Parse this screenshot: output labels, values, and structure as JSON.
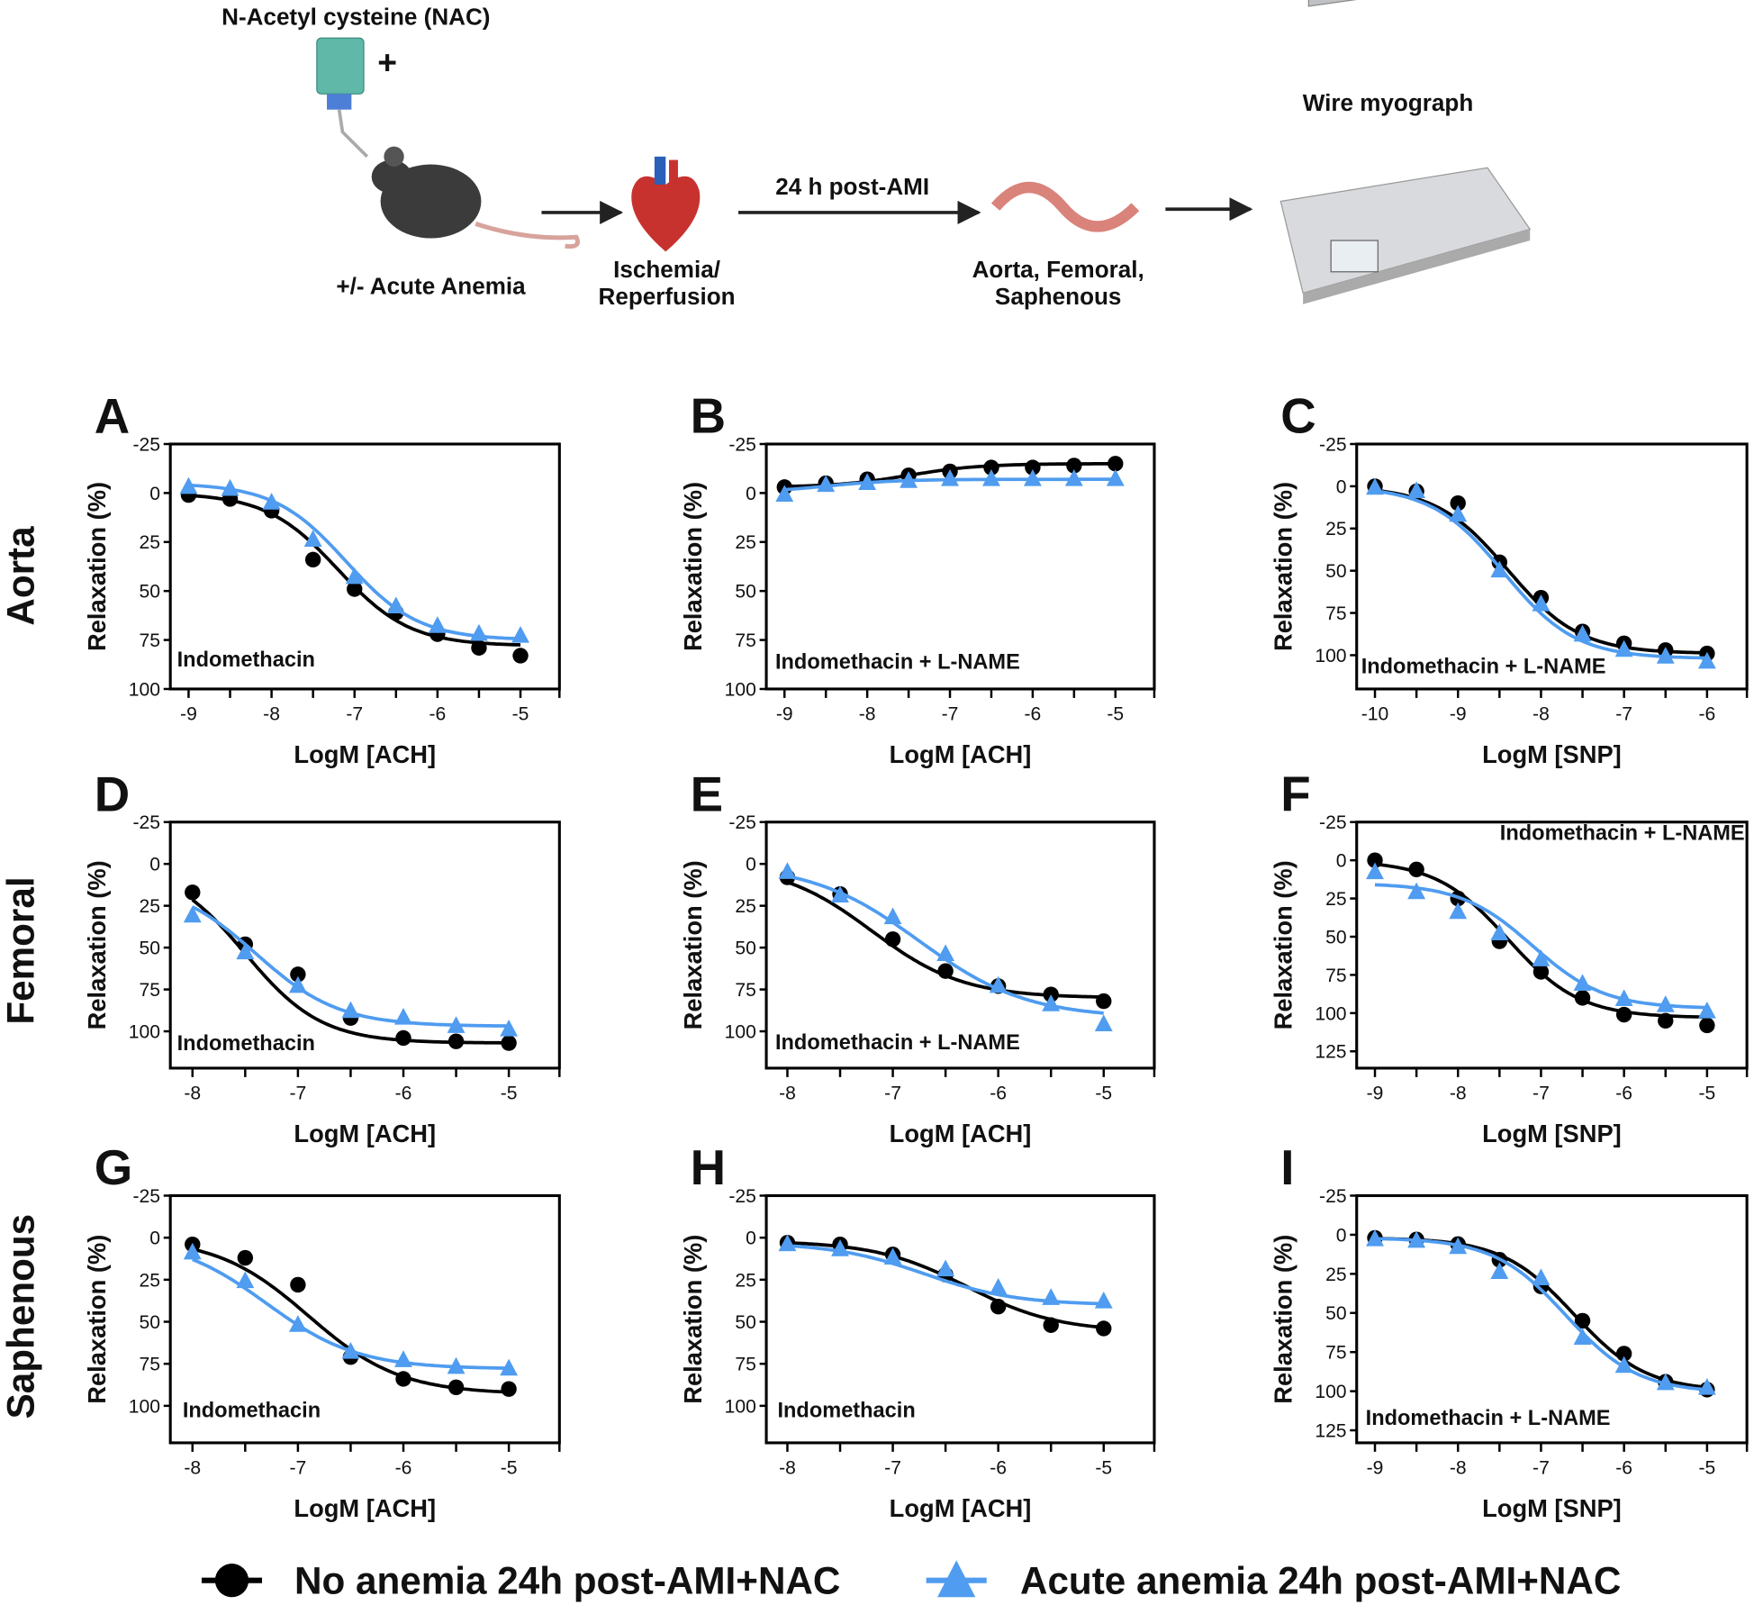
{
  "illustration": {
    "nac_label": "N-Acetyl cysteine (NAC)",
    "plus": "+",
    "anemia_label": "+/- Acute Anemia",
    "ir_label_1": "Ischemia/",
    "ir_label_2": "Reperfusion",
    "time_label": "24 h post-AMI",
    "vessels_label_1": "Aorta, Femoral,",
    "vessels_label_2": "Saphenous",
    "myograph_label": "Wire myograph"
  },
  "row_labels": [
    "Aorta",
    "Femoral",
    "Saphenous"
  ],
  "legend": {
    "series_1": "No anemia 24h post-AMI+NAC",
    "series_2": "Acute anemia 24h post-AMI+NAC"
  },
  "colors": {
    "series_1": "#000000",
    "series_2": "#4f9cf0"
  },
  "chart_data": [
    {
      "panel": "A",
      "type": "line",
      "ylabel": "Relaxation (%)",
      "xlabel": "LogM [ACH]",
      "annotation": "Indomethacin",
      "xlim": [
        -9.22,
        -4.53
      ],
      "ylim": [
        -25,
        100
      ],
      "yinvert": true,
      "yticks": [
        -25,
        0,
        25,
        50,
        75,
        100
      ],
      "xticks": [
        -9,
        -8,
        -7,
        -6,
        -5
      ],
      "x": [
        -9,
        -8.5,
        -8,
        -7.5,
        -7,
        -6.5,
        -6,
        -5.5,
        -5
      ],
      "series": [
        {
          "name": "No anemia 24h post-AMI+NAC",
          "values": [
            1,
            3,
            9,
            34,
            49,
            61,
            72,
            79,
            83
          ],
          "fit": {
            "top": 0,
            "bottom": 78,
            "logEC50": -7.2,
            "hill": 1
          }
        },
        {
          "name": "Acute anemia 24h post-AMI+NAC",
          "values": [
            -3,
            -2,
            5,
            24,
            43,
            58,
            68,
            72,
            73
          ],
          "fit": {
            "top": -5,
            "bottom": 75,
            "logEC50": -7.1,
            "hill": 1
          }
        }
      ]
    },
    {
      "panel": "B",
      "type": "line",
      "ylabel": "Relaxation (%)",
      "xlabel": "LogM [ACH]",
      "annotation": "Indomethacin + L-NAME",
      "xlim": [
        -9.22,
        -4.53
      ],
      "ylim": [
        -25,
        100
      ],
      "yinvert": true,
      "yticks": [
        -25,
        0,
        25,
        50,
        75,
        100
      ],
      "xticks": [
        -9,
        -8,
        -7,
        -6,
        -5
      ],
      "x": [
        -9,
        -8.5,
        -8,
        -7.5,
        -7,
        -6.5,
        -6,
        -5.5,
        -5
      ],
      "series": [
        {
          "name": "No anemia 24h post-AMI+NAC",
          "values": [
            -3,
            -5,
            -7,
            -9,
            -11,
            -13,
            -13,
            -14,
            -15
          ],
          "fit": {
            "top": -3,
            "bottom": -15,
            "logEC50": -7.5,
            "hill": 1
          }
        },
        {
          "name": "Acute anemia 24h post-AMI+NAC",
          "values": [
            1,
            -4,
            -5,
            -6,
            -7,
            -7,
            -7,
            -7,
            -7
          ],
          "fit": {
            "top": 0,
            "bottom": -7,
            "logEC50": -8.5,
            "hill": 1
          }
        }
      ]
    },
    {
      "panel": "C",
      "type": "line",
      "ylabel": "Relaxation (%)",
      "xlabel": "LogM [SNP]",
      "annotation": "Indomethacin + L-NAME",
      "xlim": [
        -10.22,
        -5.52
      ],
      "ylim": [
        -25,
        120
      ],
      "yinvert": true,
      "yticks": [
        -25,
        0,
        25,
        50,
        75,
        100
      ],
      "xticks": [
        -10,
        -9,
        -8,
        -7,
        -6
      ],
      "x": [
        -10,
        -9.5,
        -9,
        -8.5,
        -8,
        -7.5,
        -7,
        -6.5,
        -6
      ],
      "series": [
        {
          "name": "No anemia 24h post-AMI+NAC",
          "values": [
            0,
            3,
            10,
            45,
            66,
            86,
            93,
            97,
            99
          ],
          "fit": {
            "top": 0,
            "bottom": 99,
            "logEC50": -8.4,
            "hill": 1
          }
        },
        {
          "name": "Acute anemia 24h post-AMI+NAC",
          "values": [
            1,
            3,
            17,
            50,
            70,
            88,
            97,
            101,
            104
          ],
          "fit": {
            "top": 0,
            "bottom": 102,
            "logEC50": -8.45,
            "hill": 1
          }
        }
      ]
    },
    {
      "panel": "D",
      "type": "line",
      "ylabel": "Relaxation (%)",
      "xlabel": "LogM [ACH]",
      "annotation": "Indomethacin",
      "xlim": [
        -8.21,
        -4.52
      ],
      "ylim": [
        -25,
        122
      ],
      "yinvert": true,
      "yticks": [
        -25,
        0,
        25,
        50,
        75,
        100
      ],
      "xticks": [
        -8,
        -7,
        -6,
        -5
      ],
      "x": [
        -8,
        -7.5,
        -7,
        -6.5,
        -6,
        -5.5,
        -5
      ],
      "series": [
        {
          "name": "No anemia 24h post-AMI+NAC",
          "values": [
            17,
            48,
            66,
            92,
            104,
            106,
            107
          ],
          "fit": {
            "top": 0,
            "bottom": 107,
            "logEC50": -7.5,
            "hill": 1.2
          }
        },
        {
          "name": "Acute anemia 24h post-AMI+NAC",
          "values": [
            31,
            53,
            73,
            88,
            92,
            97,
            99
          ],
          "fit": {
            "top": 10,
            "bottom": 97,
            "logEC50": -7.4,
            "hill": 1.1
          }
        }
      ]
    },
    {
      "panel": "E",
      "type": "line",
      "ylabel": "Relaxation (%)",
      "xlabel": "LogM [ACH]",
      "annotation": "Indomethacin + L-NAME",
      "xlim": [
        -8.2,
        -4.52
      ],
      "ylim": [
        -25,
        122
      ],
      "yinvert": true,
      "yticks": [
        -25,
        0,
        25,
        50,
        75,
        100
      ],
      "xticks": [
        -8,
        -7,
        -6,
        -5
      ],
      "x": [
        -8,
        -7.5,
        -7,
        -6.5,
        -6,
        -5.5,
        -5
      ],
      "series": [
        {
          "name": "No anemia 24h post-AMI+NAC",
          "values": [
            8,
            18,
            45,
            64,
            73,
            78,
            82
          ],
          "fit": {
            "top": 0,
            "bottom": 80,
            "logEC50": -7.2,
            "hill": 1
          }
        },
        {
          "name": "Acute anemia 24h post-AMI+NAC",
          "values": [
            5,
            19,
            32,
            54,
            73,
            84,
            96
          ],
          "fit": {
            "top": 0,
            "bottom": 92,
            "logEC50": -6.75,
            "hill": 0.85
          }
        }
      ]
    },
    {
      "panel": "F",
      "type": "line",
      "ylabel": "Relaxation (%)",
      "xlabel": "LogM [SNP]",
      "annotation": "Indomethacin + L-NAME",
      "xlim": [
        -9.22,
        -4.52
      ],
      "ylim": [
        -25,
        136
      ],
      "yinvert": true,
      "yticks": [
        -25,
        0,
        25,
        50,
        75,
        100,
        125
      ],
      "xticks": [
        -9,
        -8,
        -7,
        -6,
        -5
      ],
      "x": [
        -9,
        -8.5,
        -8,
        -7.5,
        -7,
        -6.5,
        -6,
        -5.5,
        -5
      ],
      "series": [
        {
          "name": "No anemia 24h post-AMI+NAC",
          "values": [
            0,
            6,
            25,
            53,
            73,
            90,
            101,
            105,
            108
          ],
          "fit": {
            "top": 0,
            "bottom": 103,
            "logEC50": -7.4,
            "hill": 1
          }
        },
        {
          "name": "Acute anemia 24h post-AMI+NAC",
          "values": [
            8,
            21,
            34,
            48,
            65,
            81,
            91,
            95,
            99
          ],
          "fit": {
            "top": 15,
            "bottom": 97,
            "logEC50": -7.1,
            "hill": 1
          }
        }
      ]
    },
    {
      "panel": "G",
      "type": "line",
      "ylabel": "Relaxation (%)",
      "xlabel": "LogM [ACH]",
      "annotation": "Indomethacin",
      "xlim": [
        -8.21,
        -4.52
      ],
      "ylim": [
        -25,
        122
      ],
      "yinvert": true,
      "yticks": [
        -25,
        0,
        25,
        50,
        75,
        100
      ],
      "xticks": [
        -8,
        -7,
        -6,
        -5
      ],
      "x": [
        -8,
        -7.5,
        -7,
        -6.5,
        -6,
        -5.5,
        -5
      ],
      "series": [
        {
          "name": "No anemia 24h post-AMI+NAC",
          "values": [
            4,
            12,
            28,
            71,
            84,
            89,
            90
          ],
          "fit": {
            "top": 0,
            "bottom": 93,
            "logEC50": -6.9,
            "hill": 1
          }
        },
        {
          "name": "Acute anemia 24h post-AMI+NAC",
          "values": [
            9,
            26,
            52,
            68,
            73,
            77,
            78
          ],
          "fit": {
            "top": 0,
            "bottom": 78,
            "logEC50": -7.3,
            "hill": 1
          }
        }
      ]
    },
    {
      "panel": "H",
      "type": "line",
      "ylabel": "Relaxation (%)",
      "xlabel": "LogM [ACH]",
      "annotation": "Indomethacin",
      "xlim": [
        -8.2,
        -4.52
      ],
      "ylim": [
        -25,
        122
      ],
      "yinvert": true,
      "yticks": [
        -25,
        0,
        25,
        50,
        75,
        100
      ],
      "xticks": [
        -8,
        -7,
        -6,
        -5
      ],
      "x": [
        -8,
        -7.5,
        -7,
        -6.5,
        -6,
        -5.5,
        -5
      ],
      "series": [
        {
          "name": "No anemia 24h post-AMI+NAC",
          "values": [
            3,
            4,
            10,
            22,
            41,
            52,
            54
          ],
          "fit": {
            "top": 2,
            "bottom": 56,
            "logEC50": -6.3,
            "hill": 1
          }
        },
        {
          "name": "Acute anemia 24h post-AMI+NAC",
          "values": [
            4,
            7,
            12,
            19,
            30,
            36,
            38
          ],
          "fit": {
            "top": 3,
            "bottom": 40,
            "logEC50": -6.7,
            "hill": 1
          }
        }
      ]
    },
    {
      "panel": "I",
      "type": "line",
      "ylabel": "Relaxation (%)",
      "xlabel": "LogM [SNP]",
      "annotation": "Indomethacin + L-NAME",
      "xlim": [
        -9.22,
        -4.52
      ],
      "ylim": [
        -25,
        133
      ],
      "yinvert": true,
      "yticks": [
        -25,
        0,
        25,
        50,
        75,
        100,
        125
      ],
      "xticks": [
        -9,
        -8,
        -7,
        -6,
        -5
      ],
      "x": [
        -9,
        -8.5,
        -8,
        -7.5,
        -7,
        -6.5,
        -6,
        -5.5,
        -5
      ],
      "series": [
        {
          "name": "No anemia 24h post-AMI+NAC",
          "values": [
            2,
            3,
            6,
            16,
            33,
            55,
            76,
            94,
            99
          ],
          "fit": {
            "top": 2,
            "bottom": 100,
            "logEC50": -6.6,
            "hill": 1
          }
        },
        {
          "name": "Acute anemia 24h post-AMI+NAC",
          "values": [
            3,
            4,
            8,
            24,
            28,
            66,
            84,
            95,
            98
          ],
          "fit": {
            "top": 2,
            "bottom": 101,
            "logEC50": -6.7,
            "hill": 1
          }
        }
      ]
    }
  ]
}
